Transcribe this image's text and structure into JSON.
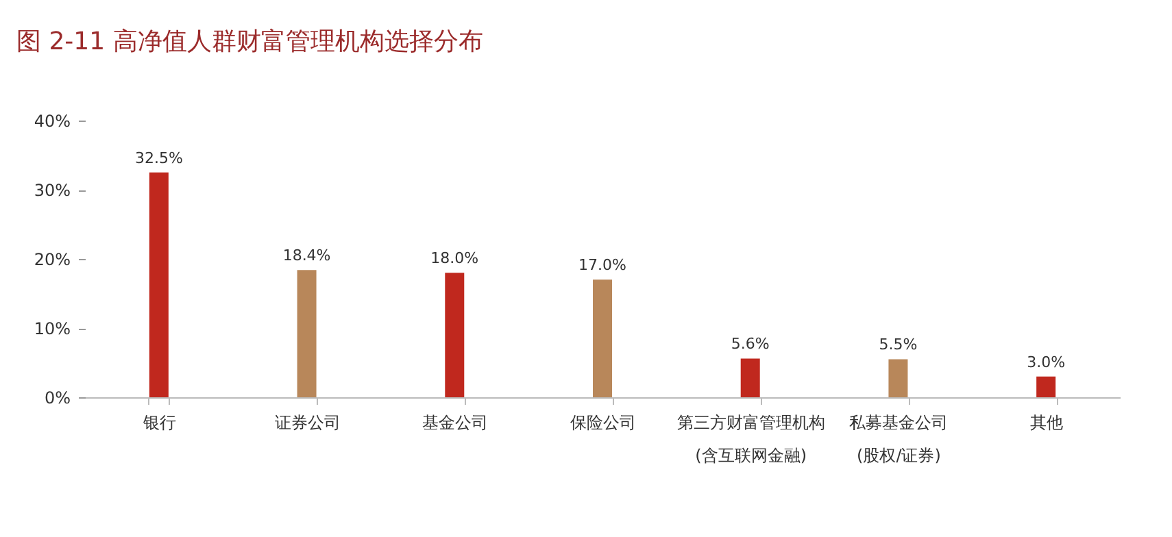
{
  "chart_data": {
    "type": "bar",
    "title": "图 2-11  高净值人群财富管理机构选择分布",
    "categories": [
      "银行",
      "证券公司",
      "基金公司",
      "保险公司",
      "第三方财富管理机构\n(含互联网金融)",
      "私募基金公司\n(股权/证券)",
      "其他"
    ],
    "values": [
      32.5,
      18.4,
      18.0,
      17.0,
      5.6,
      5.5,
      3.0
    ],
    "colors": [
      "#c0281e",
      "#b8875a",
      "#c0281e",
      "#b8875a",
      "#c0281e",
      "#b8875a",
      "#c0281e"
    ],
    "value_labels": [
      "32.5%",
      "18.4%",
      "18.0%",
      "17.0%",
      "5.6%",
      "5.5%",
      "3.0%"
    ],
    "ylim": [
      0,
      40
    ],
    "yticks": [
      {
        "value": 0,
        "label": "0%"
      },
      {
        "value": 10,
        "label": "10%"
      },
      {
        "value": 20,
        "label": "20%"
      },
      {
        "value": 30,
        "label": "30%"
      },
      {
        "value": 40,
        "label": "40%"
      }
    ],
    "grid": false
  }
}
